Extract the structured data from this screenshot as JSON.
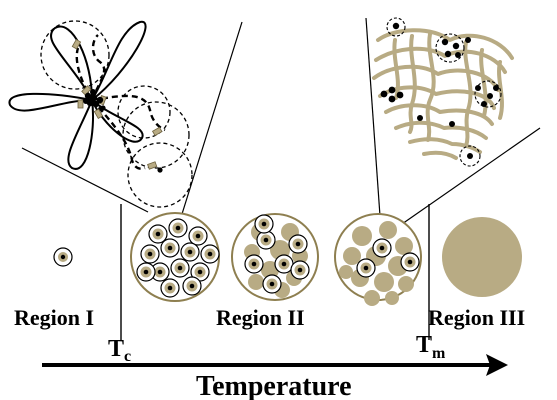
{
  "regions": {
    "region1": "Region I",
    "region2": "Region II",
    "region3": "Region III"
  },
  "transitions": {
    "tc_main": "T",
    "tc_sub": "c",
    "tm_main": "T",
    "tm_sub": "m"
  },
  "axis": {
    "label": "Temperature"
  },
  "colors": {
    "tan": "#b8ab84",
    "tan_dark": "#8e7f50",
    "ink": "#000000",
    "core": "#5e5233"
  }
}
